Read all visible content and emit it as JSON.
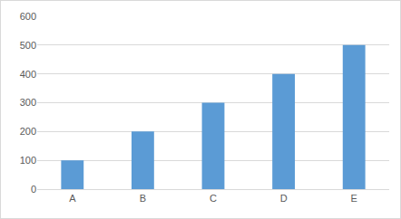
{
  "chart_data": {
    "type": "bar",
    "categories": [
      "A",
      "B",
      "C",
      "D",
      "E"
    ],
    "values": [
      100,
      200,
      300,
      400,
      500
    ],
    "color": "#5b9bd5",
    "ylim": [
      0,
      600
    ],
    "yticks": [
      0,
      100,
      200,
      300,
      400,
      500,
      600
    ],
    "grid": true
  }
}
